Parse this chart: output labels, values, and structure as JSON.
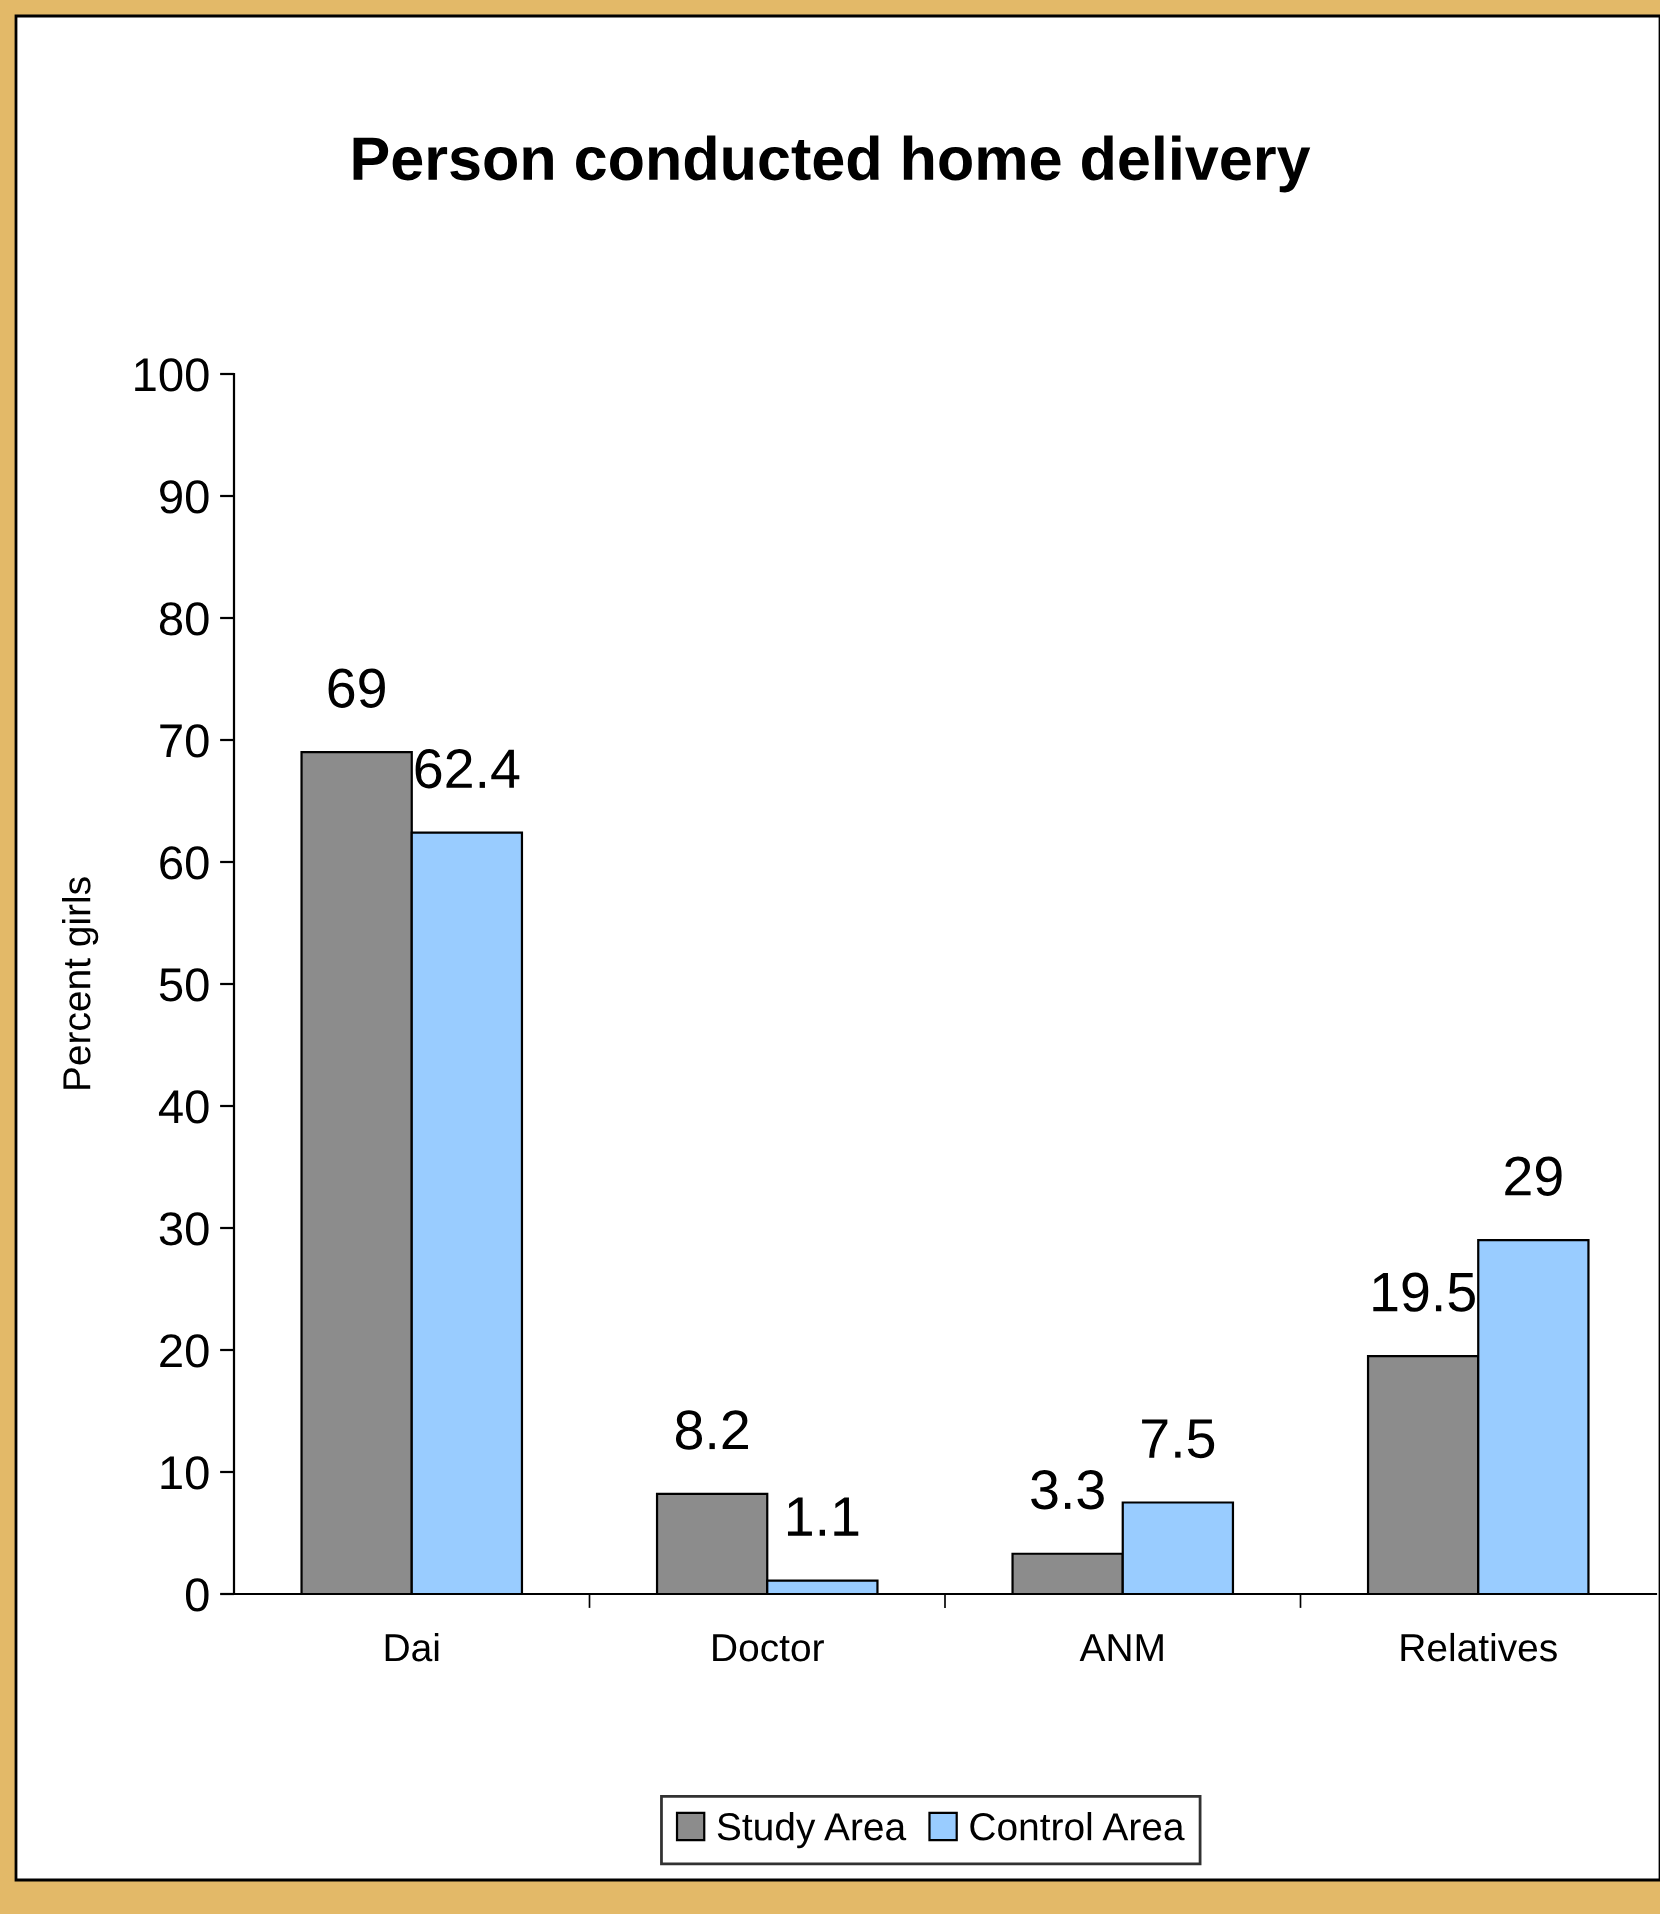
{
  "chart_data": {
    "type": "bar",
    "title": "Person conducted home delivery",
    "ylabel": "Percent girls",
    "categories": [
      "Dai",
      "Doctor",
      "ANM",
      "Relatives"
    ],
    "series": [
      {
        "name": "Study Area",
        "color": "#8c8c8c",
        "values": [
          69,
          8.2,
          3.3,
          19.5
        ]
      },
      {
        "name": "Control Area",
        "color": "#99ccff",
        "values": [
          62.4,
          1.1,
          7.5,
          29
        ]
      }
    ],
    "ylim": [
      0,
      100
    ],
    "yticks": [
      0,
      10,
      20,
      30,
      40,
      50,
      60,
      70,
      80,
      90,
      100
    ],
    "grid": false,
    "legend": "bottom",
    "data_labels": true
  }
}
